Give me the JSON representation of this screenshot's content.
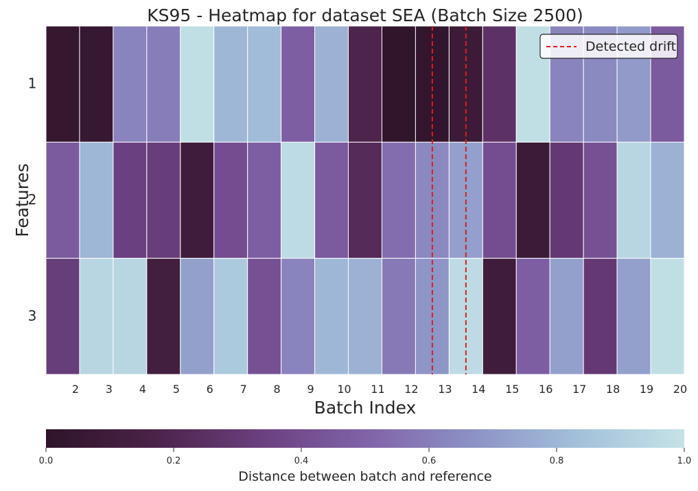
{
  "chart_data": {
    "type": "heatmap",
    "title": "KS95 - Heatmap for dataset SEA (Batch Size 2500)",
    "xlabel": "Batch Index",
    "ylabel": "Features",
    "x_tick_labels": [
      "2",
      "3",
      "4",
      "5",
      "6",
      "7",
      "8",
      "9",
      "10",
      "11",
      "12",
      "13",
      "14",
      "15",
      "16",
      "17",
      "18",
      "19",
      "20"
    ],
    "y_categories": [
      "1",
      "2",
      "3"
    ],
    "num_columns": 19,
    "values": [
      [
        0.04,
        0.05,
        0.62,
        0.6,
        0.98,
        0.8,
        0.82,
        0.48,
        0.78,
        0.18,
        0.01,
        0.02,
        0.08,
        0.26,
        0.98,
        0.62,
        0.64,
        0.7,
        0.46
      ],
      [
        0.46,
        0.8,
        0.34,
        0.32,
        0.1,
        0.4,
        0.48,
        0.96,
        0.46,
        0.22,
        0.54,
        0.64,
        0.72,
        0.4,
        0.08,
        0.3,
        0.42,
        0.94,
        0.78
      ],
      [
        0.32,
        0.94,
        0.94,
        0.12,
        0.72,
        0.88,
        0.42,
        0.62,
        0.8,
        0.78,
        0.58,
        0.68,
        0.96,
        0.1,
        0.48,
        0.72,
        0.3,
        0.72,
        0.98
      ]
    ],
    "color_range": [
      0.0,
      1.0
    ],
    "colormap": [
      "#2e1429",
      "#4a2248",
      "#6a3f7e",
      "#8062a8",
      "#8c91c5",
      "#a3c0da",
      "#c4e3e7"
    ],
    "drift_lines": [
      11.5,
      12.5
    ],
    "drift_color": "#e31a1c",
    "legend": {
      "label": "Detected drift",
      "position": "upper right"
    },
    "colorbar": {
      "label": "Distance between batch and reference",
      "ticks": [
        "0.0",
        "0.2",
        "0.4",
        "0.6",
        "0.8",
        "1.0"
      ]
    }
  }
}
